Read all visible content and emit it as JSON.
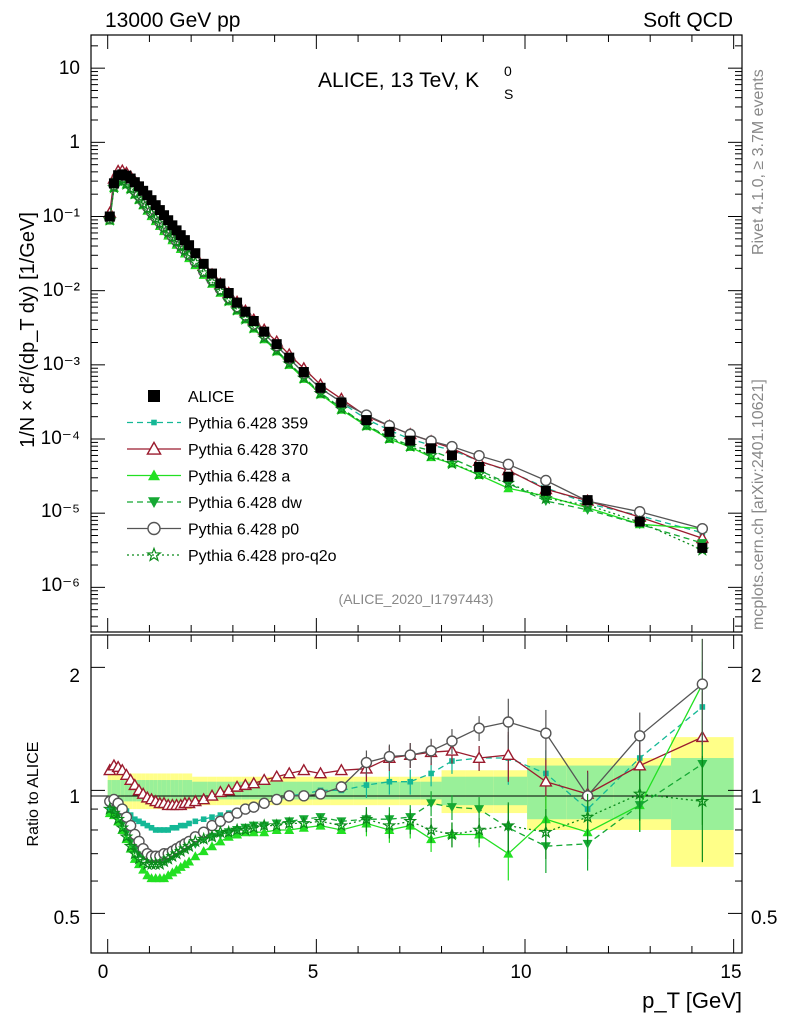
{
  "header": {
    "left": "13000 GeV pp",
    "right": "Soft QCD"
  },
  "side": {
    "rivet": "Rivet 4.1.0, ≥ 3.7M events",
    "mcplots": "mcplots.cern.ch [arXiv:2401.10621]"
  },
  "top_panel": {
    "title": "ALICE, 13 TeV, K",
    "title_sup": "0",
    "title_sub": "S",
    "ylabel": "1/N × d²/(dp_T dy) [1/GeV]",
    "analysis_tag": "(ALICE_2020_I1797443)",
    "ytick_labels": [
      "10⁻⁶",
      "10⁻⁵",
      "10⁻⁴",
      "10⁻³",
      "10⁻²",
      "10⁻¹",
      "1",
      "10"
    ]
  },
  "bottom_panel": {
    "ylabel": "Ratio to ALICE",
    "ytick_labels": [
      "0.5",
      "1",
      "2"
    ]
  },
  "xaxis": {
    "label": "p_T [GeV]",
    "tick_labels": [
      "0",
      "5",
      "10",
      "15"
    ]
  },
  "legend": [
    {
      "name": "ALICE",
      "color": "#000000",
      "marker": "square",
      "dash": "solid"
    },
    {
      "name": "Pythia 6.428 359",
      "color": "#14b896",
      "marker": "smallsquare",
      "dash": "dashed"
    },
    {
      "name": "Pythia 6.428 370",
      "color": "#9b1b2e",
      "marker": "triangle-open",
      "dash": "solid"
    },
    {
      "name": "Pythia 6.428 a",
      "color": "#22e022",
      "marker": "triangle",
      "dash": "solid"
    },
    {
      "name": "Pythia 6.428 dw",
      "color": "#15a833",
      "marker": "triangle-down",
      "dash": "dashed"
    },
    {
      "name": "Pythia 6.428 p0",
      "color": "#555555",
      "marker": "circle-open",
      "dash": "solid"
    },
    {
      "name": "Pythia 6.428 pro-q2o",
      "color": "#0b8a1a",
      "marker": "star",
      "dash": "dotted"
    }
  ],
  "chart_data": {
    "type": "line",
    "title": "ALICE, 13 TeV, K0S",
    "xlabel": "p_T [GeV]",
    "ylabel": "1/N d2/(dp_T dy) [1/GeV]",
    "xlim": [
      -0.4,
      15.2
    ],
    "ylim_log": [
      2.5e-07,
      28
    ],
    "ratio_ylim": [
      0.4,
      2.4
    ],
    "x": [
      0.05,
      0.15,
      0.25,
      0.35,
      0.45,
      0.55,
      0.65,
      0.75,
      0.85,
      0.95,
      1.05,
      1.15,
      1.25,
      1.35,
      1.45,
      1.55,
      1.65,
      1.75,
      1.85,
      1.95,
      2.1,
      2.3,
      2.5,
      2.7,
      2.9,
      3.1,
      3.3,
      3.5,
      3.75,
      4.05,
      4.35,
      4.7,
      5.1,
      5.6,
      6.2,
      6.75,
      7.25,
      7.75,
      8.25,
      8.9,
      9.6,
      10.5,
      11.5,
      12.75,
      14.25
    ],
    "series": [
      {
        "name": "ALICE",
        "values": [
          0.1,
          0.28,
          0.36,
          0.37,
          0.355,
          0.325,
          0.29,
          0.255,
          0.222,
          0.193,
          0.166,
          0.142,
          0.122,
          0.104,
          0.089,
          0.076,
          0.065,
          0.056,
          0.048,
          0.041,
          0.032,
          0.023,
          0.017,
          0.0125,
          0.0093,
          0.0069,
          0.0052,
          0.0039,
          0.0028,
          0.0019,
          0.00125,
          0.0008,
          0.00049,
          0.00031,
          0.00018,
          0.000125,
          9.5e-05,
          7.5e-05,
          6e-05,
          4.2e-05,
          3.1e-05,
          2e-05,
          1.5e-05,
          7.7e-06,
          3.4e-06
        ]
      },
      {
        "name": "Pythia 6.428 359",
        "ratio": [
          0.9,
          0.93,
          0.93,
          0.91,
          0.89,
          0.87,
          0.85,
          0.84,
          0.83,
          0.82,
          0.81,
          0.8,
          0.8,
          0.8,
          0.8,
          0.81,
          0.81,
          0.82,
          0.82,
          0.83,
          0.84,
          0.85,
          0.86,
          0.87,
          0.88,
          0.89,
          0.9,
          0.92,
          0.93,
          0.95,
          0.97,
          0.98,
          1.0,
          1.0,
          1.03,
          1.05,
          1.05,
          1.1,
          1.18,
          1.2,
          1.2,
          1.1,
          0.9,
          1.2,
          1.6
        ]
      },
      {
        "name": "Pythia 6.428 370",
        "ratio": [
          1.12,
          1.15,
          1.14,
          1.12,
          1.09,
          1.06,
          1.03,
          1.0,
          0.98,
          0.96,
          0.95,
          0.94,
          0.93,
          0.93,
          0.92,
          0.92,
          0.92,
          0.92,
          0.93,
          0.93,
          0.94,
          0.95,
          0.97,
          0.99,
          1.0,
          1.02,
          1.03,
          1.04,
          1.06,
          1.08,
          1.1,
          1.12,
          1.1,
          1.12,
          1.13,
          1.2,
          1.22,
          1.24,
          1.25,
          1.2,
          1.22,
          1.05,
          0.98,
          1.15,
          1.35
        ]
      },
      {
        "name": "Pythia 6.428 a",
        "ratio": [
          0.88,
          0.87,
          0.84,
          0.8,
          0.76,
          0.72,
          0.68,
          0.66,
          0.64,
          0.62,
          0.61,
          0.61,
          0.61,
          0.61,
          0.62,
          0.63,
          0.64,
          0.65,
          0.66,
          0.67,
          0.69,
          0.71,
          0.73,
          0.75,
          0.77,
          0.78,
          0.79,
          0.79,
          0.79,
          0.8,
          0.8,
          0.81,
          0.82,
          0.8,
          0.83,
          0.8,
          0.82,
          0.76,
          0.78,
          0.78,
          0.7,
          0.85,
          0.79,
          0.92,
          1.82
        ]
      },
      {
        "name": "Pythia 6.428 dw",
        "ratio": [
          0.92,
          0.9,
          0.87,
          0.83,
          0.79,
          0.75,
          0.72,
          0.7,
          0.69,
          0.68,
          0.67,
          0.67,
          0.67,
          0.67,
          0.68,
          0.69,
          0.7,
          0.71,
          0.72,
          0.73,
          0.74,
          0.76,
          0.77,
          0.78,
          0.79,
          0.8,
          0.81,
          0.82,
          0.82,
          0.83,
          0.84,
          0.85,
          0.86,
          0.84,
          0.85,
          0.85,
          0.86,
          0.93,
          0.91,
          0.9,
          0.81,
          0.73,
          0.74,
          0.92,
          1.16
        ]
      },
      {
        "name": "Pythia 6.428 p0",
        "ratio": [
          0.94,
          0.95,
          0.93,
          0.9,
          0.86,
          0.82,
          0.78,
          0.75,
          0.72,
          0.7,
          0.69,
          0.69,
          0.69,
          0.7,
          0.7,
          0.71,
          0.72,
          0.73,
          0.74,
          0.75,
          0.77,
          0.79,
          0.82,
          0.84,
          0.86,
          0.88,
          0.9,
          0.91,
          0.93,
          0.95,
          0.97,
          0.97,
          0.98,
          1.02,
          1.17,
          1.21,
          1.22,
          1.25,
          1.32,
          1.42,
          1.47,
          1.38,
          0.97,
          1.36,
          1.82
        ]
      },
      {
        "name": "Pythia 6.428 pro-q2o",
        "ratio": [
          0.9,
          0.88,
          0.85,
          0.81,
          0.77,
          0.73,
          0.7,
          0.68,
          0.67,
          0.66,
          0.66,
          0.66,
          0.66,
          0.67,
          0.68,
          0.69,
          0.7,
          0.71,
          0.72,
          0.73,
          0.75,
          0.76,
          0.77,
          0.79,
          0.79,
          0.8,
          0.8,
          0.81,
          0.82,
          0.82,
          0.83,
          0.83,
          0.84,
          0.82,
          0.85,
          0.82,
          0.84,
          0.8,
          0.78,
          0.8,
          0.82,
          0.79,
          0.86,
          0.98,
          0.94
        ]
      }
    ]
  }
}
